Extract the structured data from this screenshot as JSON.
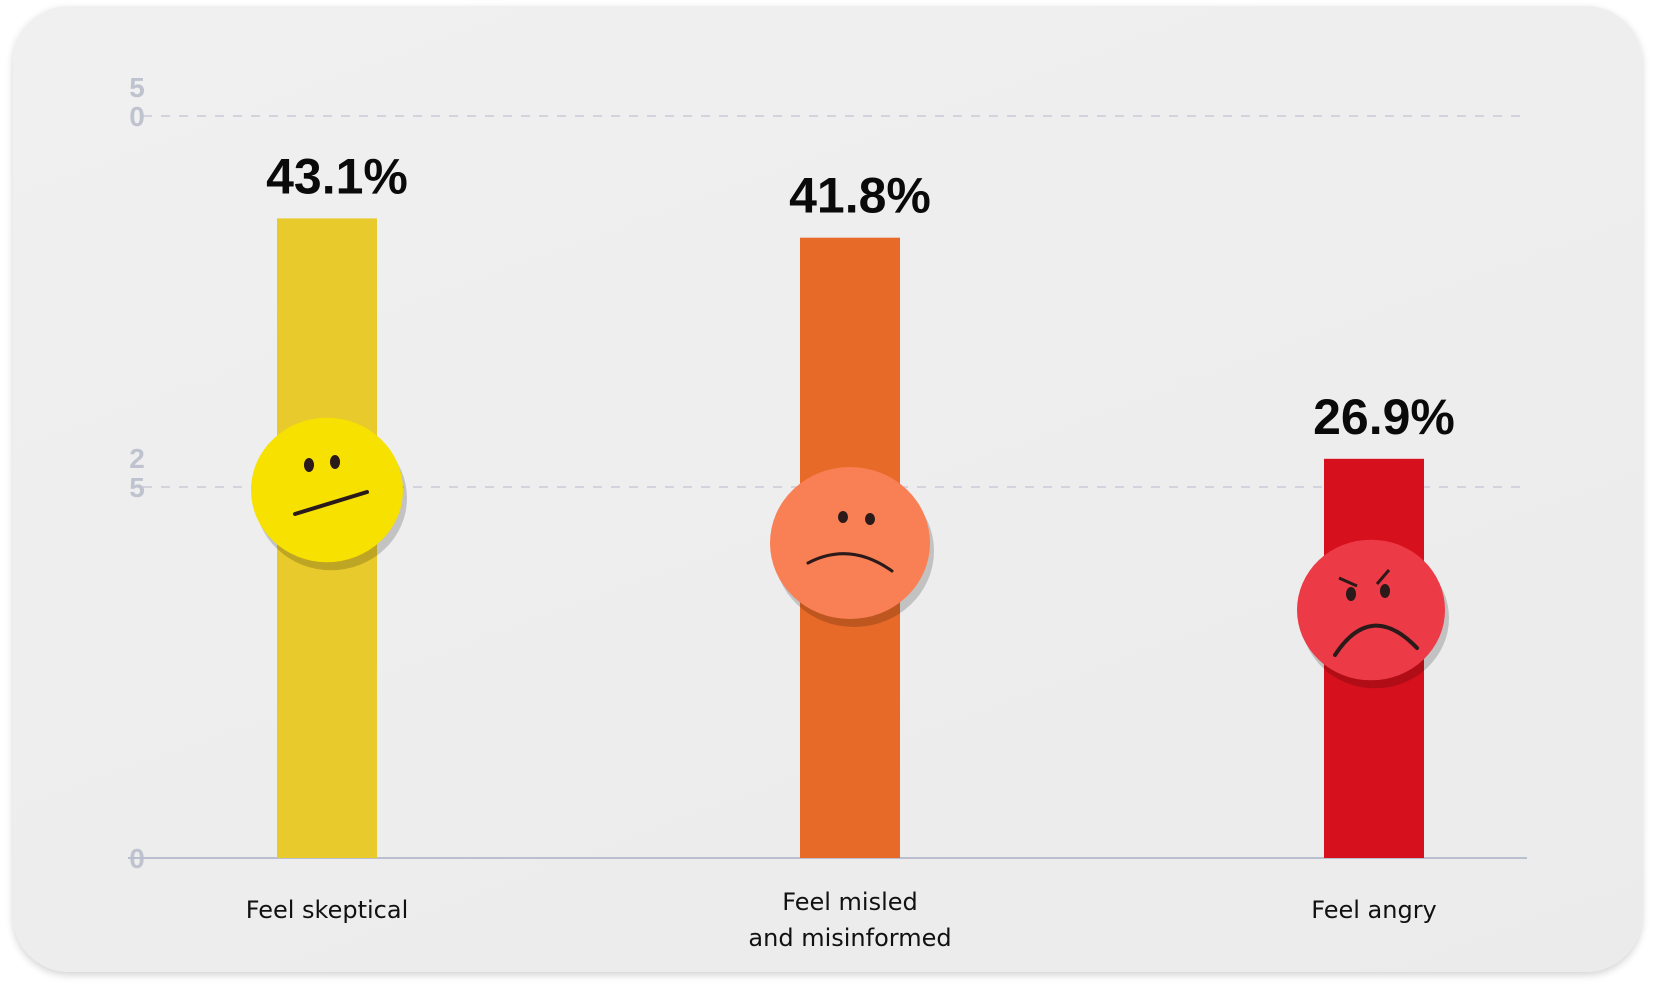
{
  "chart_data": {
    "type": "bar",
    "categories": [
      "Feel skeptical",
      "Feel misled\nand misinformed",
      "Feel angry"
    ],
    "values": [
      43.1,
      41.8,
      26.9
    ],
    "value_labels": [
      "43.1%",
      "41.8%",
      "26.9%"
    ],
    "colors": [
      "#e8ca2c",
      "#e86a28",
      "#d7101d"
    ],
    "face_colors": [
      "#f6e100",
      "#f97f55",
      "#ec3a46"
    ],
    "faces": [
      "neutral-face-icon",
      "sad-face-icon",
      "angry-face-icon"
    ],
    "yticks": [
      0,
      25,
      50
    ],
    "ytick_labels": [
      "0",
      "25",
      "50"
    ],
    "ylim": [
      0,
      50
    ],
    "grid": true,
    "title": "",
    "xlabel": "",
    "ylabel": ""
  }
}
